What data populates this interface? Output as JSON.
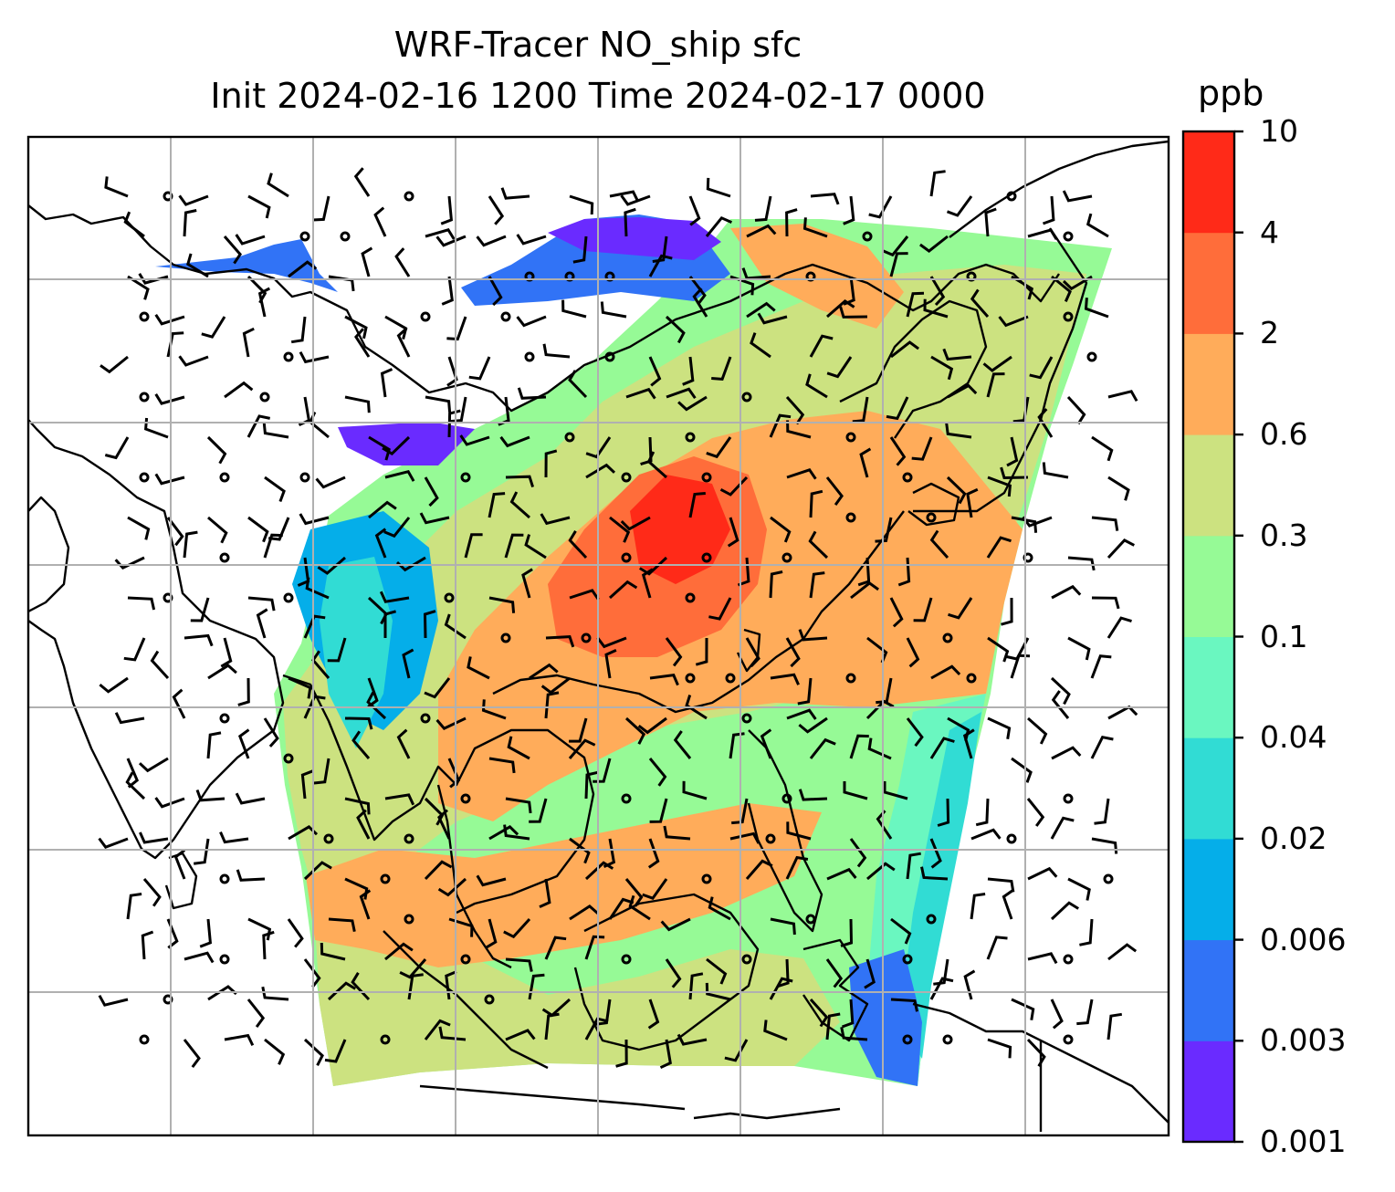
{
  "title": {
    "line1": "WRF-Tracer NO_ship sfc",
    "line2": "Init 2024-02-16 1200 Time 2024-02-17 0000"
  },
  "colorbar": {
    "unit": "ppb",
    "levels": [
      "0.001",
      "0.003",
      "0.006",
      "0.02",
      "0.04",
      "0.1",
      "0.3",
      "0.6",
      "2",
      "4",
      "10"
    ],
    "colors": [
      "#6a2bff",
      "#3173f6",
      "#05aee9",
      "#31dcd4",
      "#6af7c0",
      "#96fa96",
      "#cce280",
      "#ffac5a",
      "#ff6d3a",
      "#ff2a18"
    ]
  },
  "map": {
    "background": "#ffffff",
    "gridline_color": "#b0b0b0",
    "coastline_color": "#000000",
    "wind_barb_color": "#000000"
  }
}
